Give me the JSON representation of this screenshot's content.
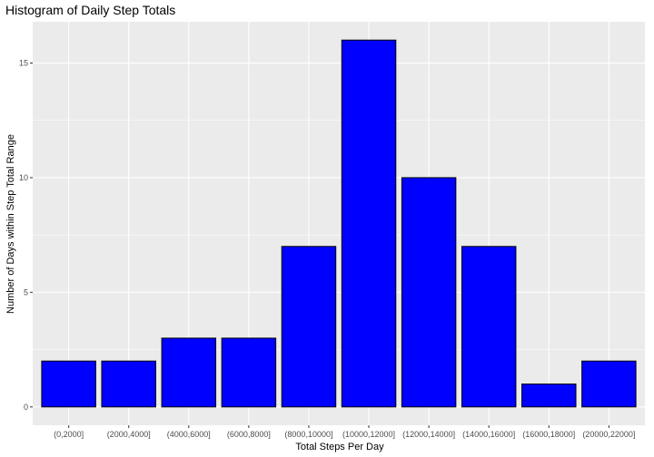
{
  "chart_data": {
    "type": "bar",
    "title": "Histogram of Daily Step Totals",
    "xlabel": "Total Steps Per Day",
    "ylabel": "Number of Days within Step Total Range",
    "categories": [
      "(0,2000]",
      "(2000,4000]",
      "(4000,6000]",
      "(6000,8000]",
      "(8000,10000]",
      "(10000,12000]",
      "(12000,14000]",
      "(14000,16000]",
      "(16000,18000]",
      "(20000,22000]"
    ],
    "values": [
      2,
      2,
      3,
      3,
      7,
      16,
      10,
      7,
      1,
      2
    ],
    "ylim": [
      0,
      16.8
    ],
    "yticks": [
      0,
      5,
      10,
      15
    ],
    "grid": true,
    "colors": {
      "bar_fill": "#0000ff",
      "bar_stroke": "#000000",
      "panel_bg": "#ebebeb",
      "grid": "#ffffff"
    }
  }
}
